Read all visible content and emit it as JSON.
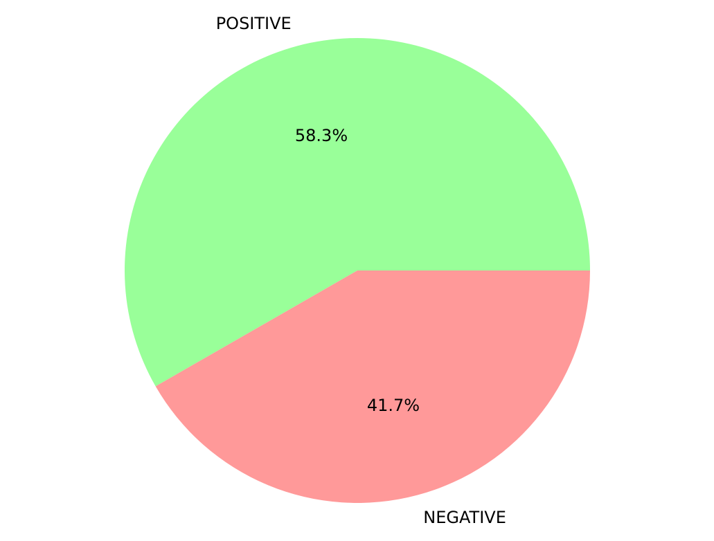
{
  "chart_data": {
    "type": "pie",
    "title": "",
    "slices": [
      {
        "label": "POSITIVE",
        "value": 58.3,
        "pct_label": "58.3%",
        "color": "#99ff99"
      },
      {
        "label": "NEGATIVE",
        "value": 41.7,
        "pct_label": "41.7%",
        "color": "#ff9999"
      }
    ],
    "start_angle_deg": 0,
    "direction": "counterclockwise",
    "legend": "none"
  }
}
